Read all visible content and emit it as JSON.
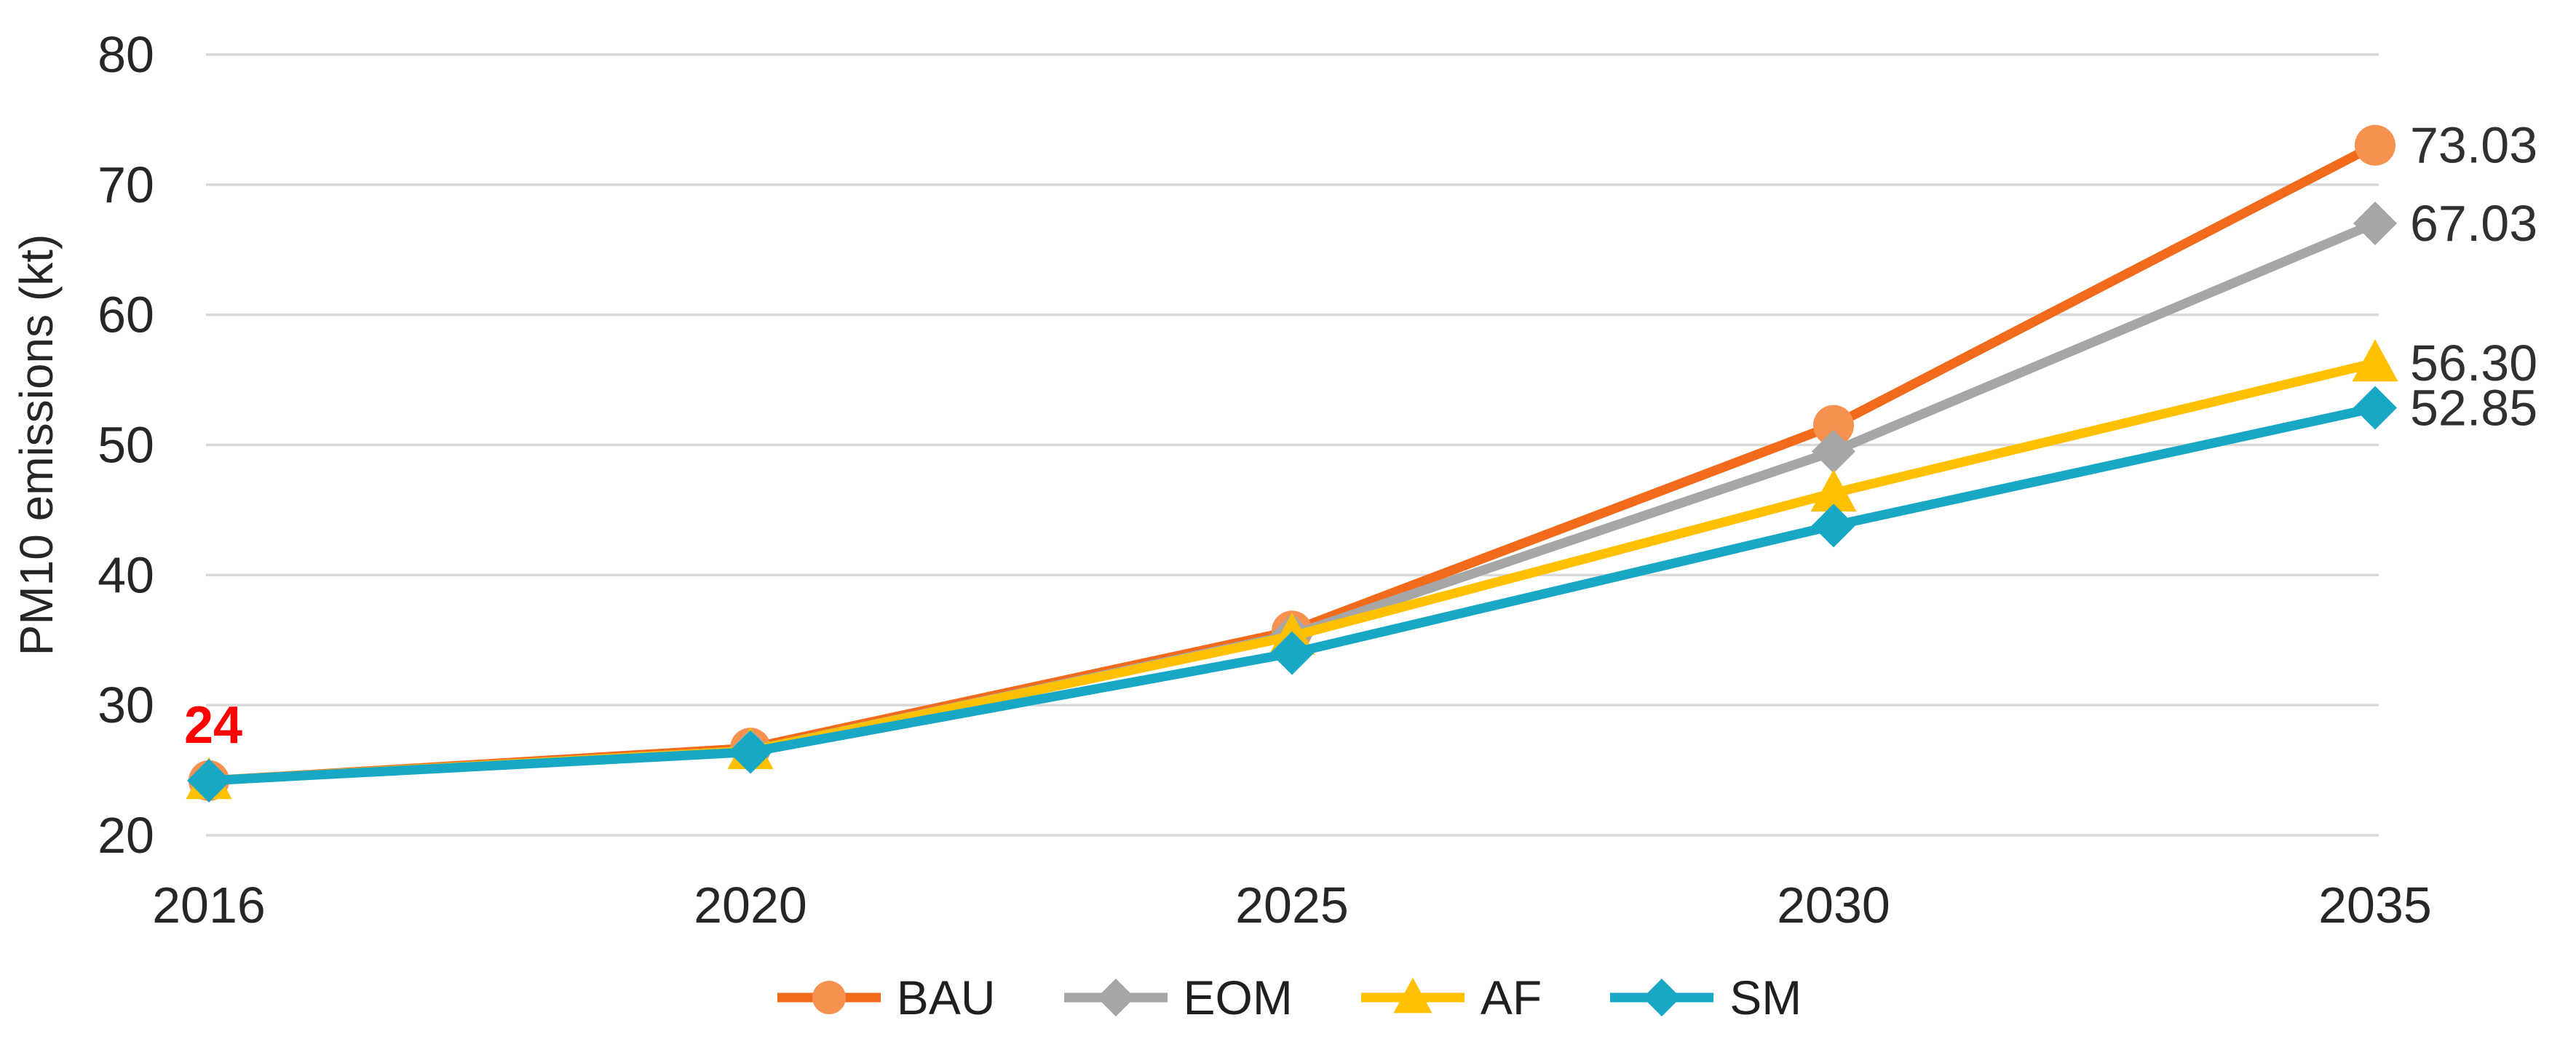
{
  "chart_data": {
    "type": "line",
    "title": "",
    "xlabel": "",
    "ylabel": "PM10 emissions (kt)",
    "categories": [
      "2016",
      "2020",
      "2025",
      "2030",
      "2035"
    ],
    "ylim": [
      20,
      80
    ],
    "yticks": [
      20,
      30,
      40,
      50,
      60,
      70,
      80
    ],
    "grid": "horizontal",
    "legend_position": "bottom-center",
    "series": [
      {
        "name": "BAU",
        "marker": "circle",
        "line_color": "#F26A1B",
        "marker_color": "#F79150",
        "values": [
          24.2,
          26.7,
          35.7,
          51.5,
          73.03
        ],
        "end_label": "73.03"
      },
      {
        "name": "EOM",
        "marker": "diamond",
        "line_color": "#A6A6A6",
        "marker_color": "#A6A6A6",
        "values": [
          24.2,
          26.5,
          35.4,
          49.5,
          67.03
        ],
        "end_label": "67.03"
      },
      {
        "name": "AF",
        "marker": "triangle",
        "line_color": "#FFC000",
        "marker_color": "#FFC000",
        "values": [
          24.2,
          26.5,
          35.3,
          46.3,
          56.3
        ],
        "end_label": "56.30"
      },
      {
        "name": "SM",
        "marker": "diamond",
        "line_color": "#18A8C6",
        "marker_color": "#18A8C6",
        "values": [
          24.2,
          26.4,
          34.0,
          43.8,
          52.85
        ],
        "end_label": "52.85"
      }
    ],
    "annotation": {
      "text": "24",
      "color": "#FF0000",
      "category_index": 0,
      "series": "all"
    }
  },
  "style": {
    "grid_color": "#D9D9D9",
    "axis_text_color": "#262626",
    "data_label_color": "#303030",
    "background": "#FFFFFF"
  }
}
